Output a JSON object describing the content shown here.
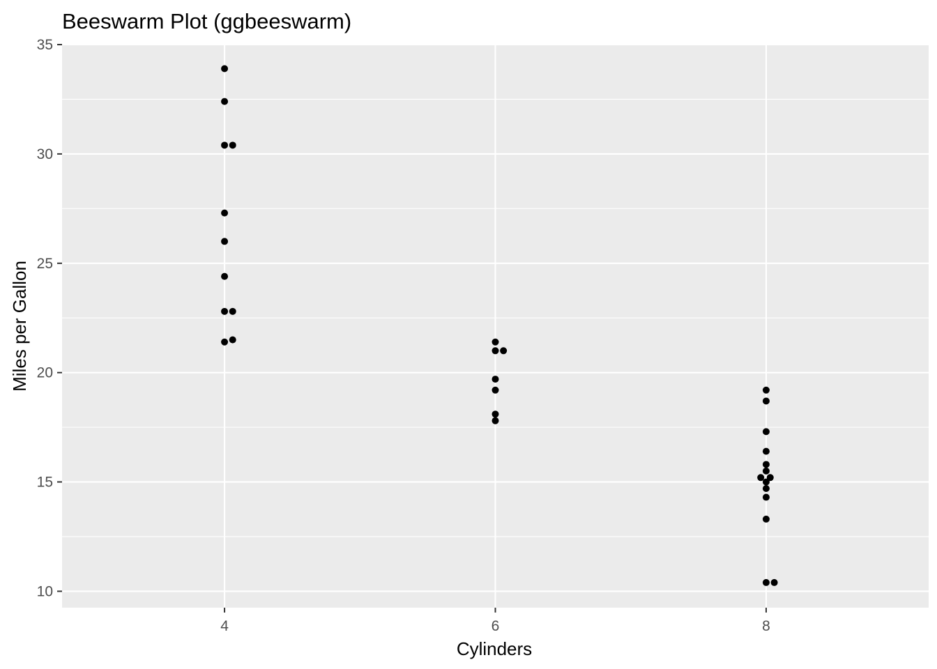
{
  "chart_data": {
    "type": "scatter",
    "title": "Beeswarm Plot (ggbeeswarm)",
    "xlabel": "Cylinders",
    "ylabel": "Miles per Gallon",
    "xlim": [
      2.8,
      9.2
    ],
    "ylim": [
      9.25,
      35.0
    ],
    "x_ticks": [
      4,
      6,
      8
    ],
    "x_tick_labels": [
      "4",
      "6",
      "8"
    ],
    "y_ticks": [
      10,
      15,
      20,
      25,
      30,
      35
    ],
    "y_tick_labels": [
      "10",
      "15",
      "20",
      "25",
      "30",
      "35"
    ],
    "grid": true,
    "legend": "none",
    "point_color": "#000000",
    "panel_color": "#ebebeb",
    "series": [
      {
        "x": [
          4.0,
          4.0,
          4.0,
          4.06,
          4.0,
          4.0,
          4.0,
          4.0,
          4.06,
          4.0,
          4.06
        ],
        "y": [
          33.9,
          32.4,
          30.4,
          30.4,
          27.3,
          26.0,
          24.4,
          22.8,
          22.8,
          21.4,
          21.5
        ]
      },
      {
        "x": [
          6.0,
          6.0,
          6.06,
          6.0,
          6.0,
          6.0,
          6.0
        ],
        "y": [
          21.4,
          21.0,
          21.0,
          19.7,
          19.2,
          18.1,
          17.8
        ]
      },
      {
        "x": [
          8.0,
          8.0,
          8.0,
          8.0,
          8.0,
          8.0,
          7.96,
          8.03,
          8.0,
          8.0,
          8.0,
          8.0,
          8.0,
          8.06
        ],
        "y": [
          19.2,
          18.7,
          17.3,
          16.4,
          15.8,
          15.5,
          15.2,
          15.2,
          15.0,
          14.7,
          14.3,
          13.3,
          10.4,
          10.4
        ]
      }
    ]
  }
}
